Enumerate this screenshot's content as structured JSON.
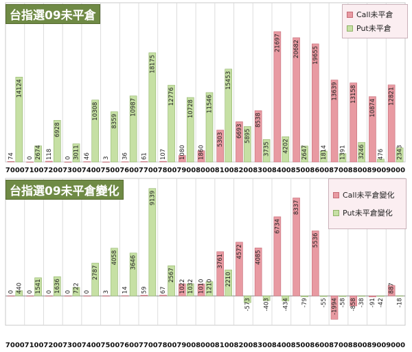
{
  "chart_data": [
    {
      "type": "bar",
      "title": "台指選09未平倉",
      "categories": [
        "7000",
        "7100",
        "7200",
        "7300",
        "7400",
        "7500",
        "7600",
        "7700",
        "7800",
        "7900",
        "8000",
        "8100",
        "8200",
        "8300",
        "8400",
        "8500",
        "8600",
        "8700",
        "8800",
        "8900",
        "9000"
      ],
      "series": [
        {
          "name": "Call未平倉",
          "color": "#e89aa2",
          "values": [
            74,
            0,
            118,
            0,
            46,
            3,
            36,
            61,
            107,
            1080,
            1860,
            5303,
            6693,
            8538,
            21697,
            20682,
            19655,
            13639,
            13158,
            10874,
            12821
          ]
        },
        {
          "name": "Put未平倉",
          "color": "#c6e0a4",
          "values": [
            14124,
            2674,
            6928,
            3011,
            10308,
            8359,
            10987,
            18175,
            12776,
            10728,
            11546,
            15453,
            5895,
            3735,
            4202,
            2647,
            1814,
            1391,
            3246,
            476,
            2343
          ]
        }
      ],
      "ylim": [
        0,
        26500
      ],
      "legend": "top-right"
    },
    {
      "type": "bar",
      "title": "台指選09未平倉變化",
      "categories": [
        "7000",
        "7100",
        "7200",
        "7300",
        "7400",
        "7500",
        "7600",
        "7700",
        "7800",
        "7900",
        "8000",
        "8100",
        "8200",
        "8300",
        "8400",
        "8500",
        "8600",
        "8700",
        "8800",
        "8900",
        "9000"
      ],
      "series": [
        {
          "name": "Call未平倉變化",
          "color": "#e89aa2",
          "values": [
            0,
            0,
            0,
            0,
            0,
            3,
            14,
            59,
            67,
            1022,
            1010,
            3761,
            4572,
            4085,
            6734,
            8337,
            5536,
            -1994,
            -858,
            -91,
            887
          ]
        },
        {
          "name": "Put未平倉變化",
          "color": "#c6e0a4",
          "values": [
            440,
            1541,
            1636,
            722,
            2787,
            4058,
            3646,
            9139,
            2567,
            1032,
            1210,
            2210,
            -573,
            -403,
            -434,
            -79,
            -55,
            -58,
            -38,
            -42,
            -18
          ]
        }
      ],
      "ylim": [
        -2500,
        10000
      ],
      "legend": "top-right"
    }
  ]
}
